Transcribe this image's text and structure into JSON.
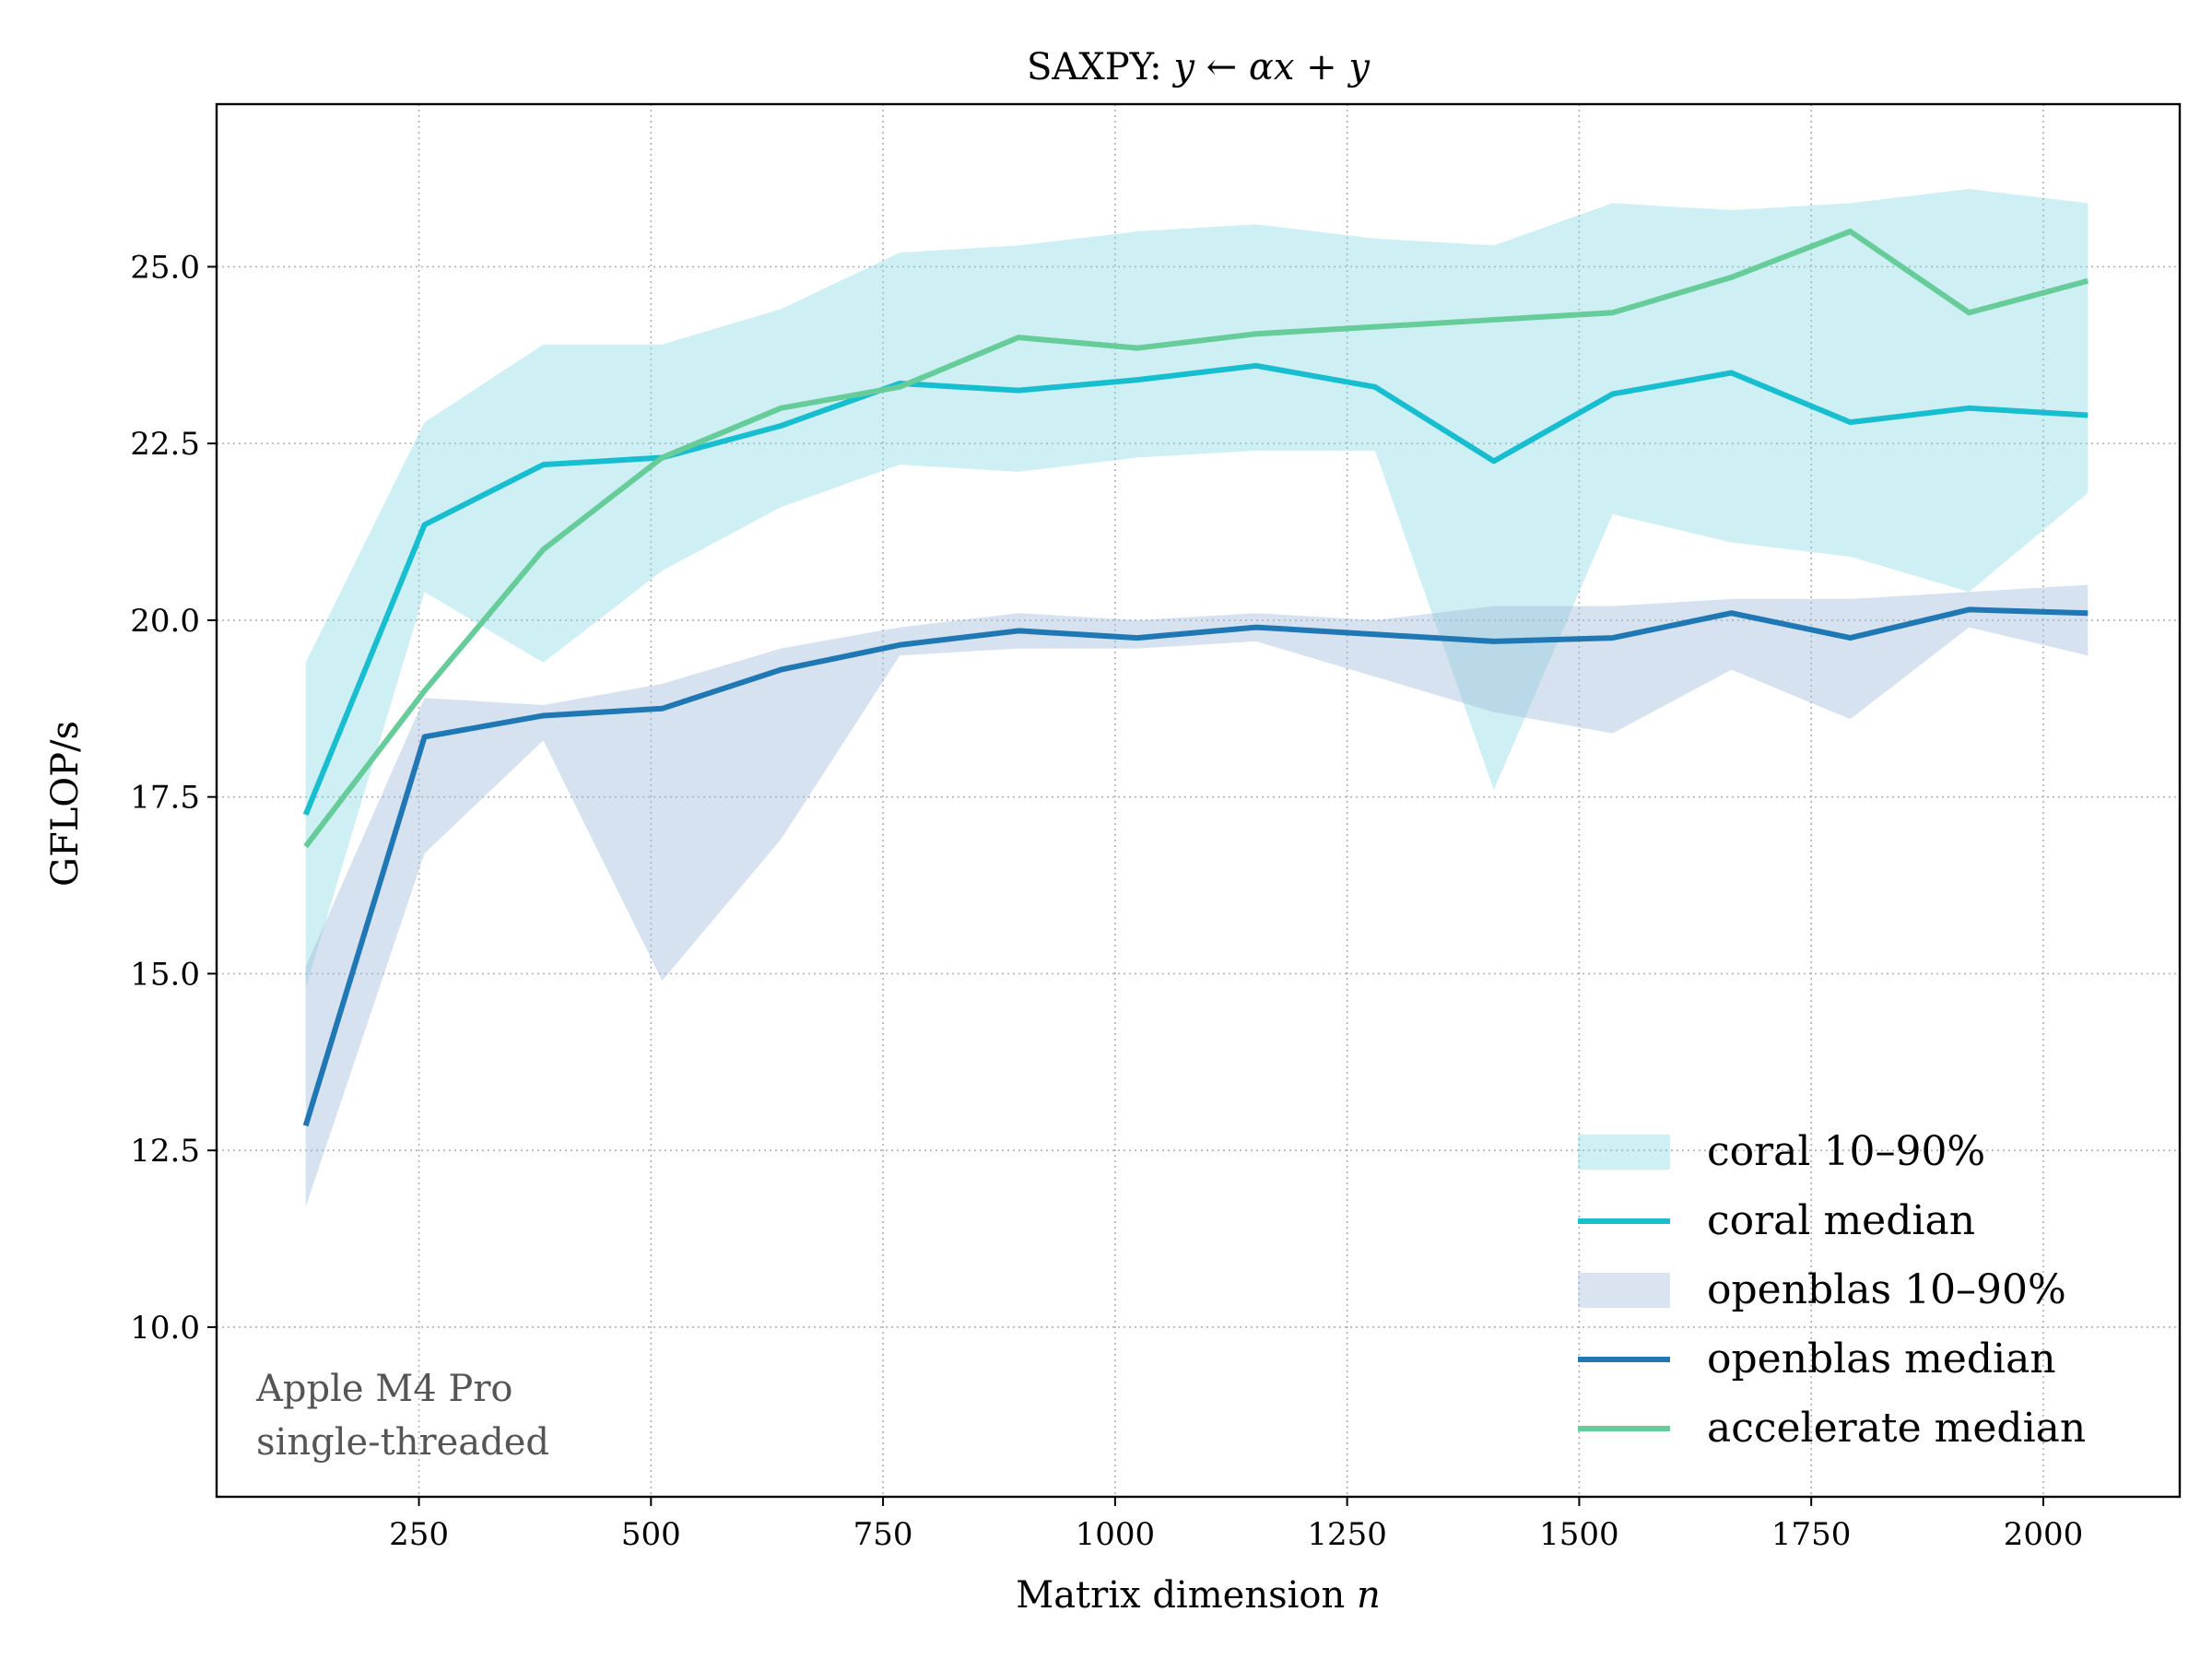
{
  "chart_data": {
    "type": "line",
    "title_text": "SAXPY: ",
    "title_math": "y ← αx + y",
    "xlabel_text": "Matrix dimension ",
    "xlabel_math": "n",
    "ylabel": "GFLOP/s",
    "xlim": [
      32,
      2147
    ],
    "ylim": [
      7.6,
      27.3
    ],
    "xticks": [
      250,
      500,
      750,
      1000,
      1250,
      1500,
      1750,
      2000
    ],
    "yticks": [
      10.0,
      12.5,
      15.0,
      17.5,
      20.0,
      22.5,
      25.0
    ],
    "ytick_labels": [
      "10.0",
      "12.5",
      "15.0",
      "17.5",
      "20.0",
      "22.5",
      "25.0"
    ],
    "grid": true,
    "legend_position": "lower-right",
    "annotation": [
      "Apple M4 Pro",
      "single-threaded"
    ],
    "x": [
      128,
      256,
      384,
      512,
      640,
      768,
      896,
      1024,
      1152,
      1280,
      1408,
      1536,
      1664,
      1792,
      1920,
      2048
    ],
    "bands": [
      {
        "name": "coral 10–90%",
        "color": "#7fd6df",
        "lower": [
          14.8,
          20.4,
          19.4,
          20.7,
          21.6,
          22.2,
          22.1,
          22.3,
          22.4,
          22.4,
          17.6,
          21.5,
          21.1,
          20.9,
          20.4,
          21.8
        ],
        "upper": [
          19.4,
          22.8,
          23.9,
          23.9,
          24.4,
          25.2,
          25.3,
          25.5,
          25.6,
          25.4,
          25.3,
          25.9,
          25.8,
          25.9,
          26.1,
          25.9
        ]
      },
      {
        "name": "openblas 10–90%",
        "color": "#9db9d8",
        "lower": [
          11.7,
          16.7,
          18.3,
          14.9,
          16.9,
          19.5,
          19.6,
          19.6,
          19.7,
          19.2,
          18.7,
          18.4,
          19.3,
          18.6,
          19.9,
          19.5
        ],
        "upper": [
          15.1,
          18.9,
          18.8,
          19.1,
          19.6,
          19.9,
          20.1,
          20.0,
          20.1,
          20.0,
          20.2,
          20.2,
          20.3,
          20.3,
          20.4,
          20.5
        ]
      }
    ],
    "series": [
      {
        "name": "coral median",
        "color": "#17becf",
        "values": [
          17.25,
          21.35,
          22.2,
          22.3,
          22.75,
          23.35,
          23.25,
          23.4,
          23.6,
          23.3,
          22.25,
          23.2,
          23.5,
          22.8,
          23.0,
          22.9
        ]
      },
      {
        "name": "openblas median",
        "color": "#1f77b4",
        "values": [
          12.85,
          18.35,
          18.65,
          18.75,
          19.3,
          19.65,
          19.85,
          19.75,
          19.9,
          19.8,
          19.7,
          19.75,
          20.1,
          19.75,
          20.15,
          20.1
        ]
      },
      {
        "name": "accelerate median",
        "color": "#66cc99",
        "values": [
          16.8,
          19.0,
          21.0,
          22.3,
          23.0,
          23.3,
          24.0,
          23.85,
          24.05,
          24.15,
          24.25,
          24.35,
          24.85,
          25.5,
          24.35,
          24.8
        ]
      }
    ],
    "legend": [
      {
        "label": "coral 10–90%",
        "kind": "band",
        "color": "#7fd6df"
      },
      {
        "label": "coral median",
        "kind": "line",
        "color": "#17becf"
      },
      {
        "label": "openblas 10–90%",
        "kind": "band",
        "color": "#9db9d8"
      },
      {
        "label": "openblas median",
        "kind": "line",
        "color": "#1f77b4"
      },
      {
        "label": "accelerate median",
        "kind": "line",
        "color": "#66cc99"
      }
    ]
  }
}
